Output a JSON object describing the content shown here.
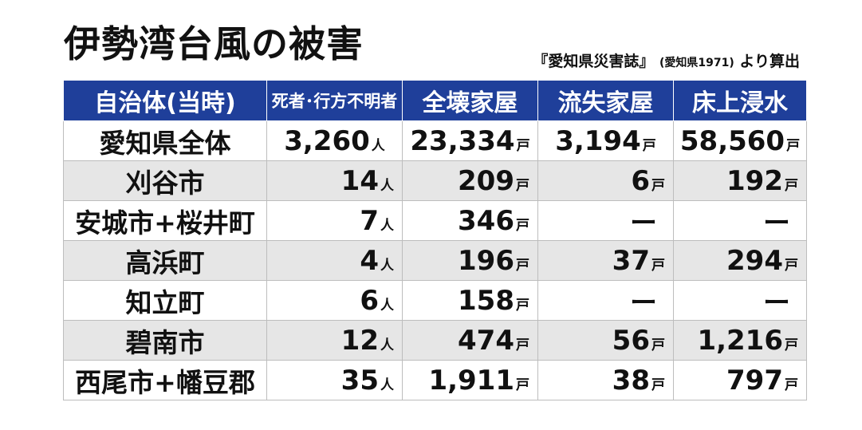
{
  "title": "伊勢湾台風の被害",
  "source": {
    "main": "『愛知県災害誌』",
    "detail": "(愛知県1971)",
    "suffix": "より算出"
  },
  "colors": {
    "header_bg": "#1f3f9a",
    "stripe": "#e6e6e6"
  },
  "headers": [
    "自治体(当時)",
    "死者･行方不明者",
    "全壊家屋",
    "流失家屋",
    "床上浸水"
  ],
  "rows": [
    {
      "name": "愛知県全体",
      "deaths": "3,260",
      "deaths_unit": "人",
      "destroyed": "23,334",
      "destroyed_unit": "戸",
      "washed": "3,194",
      "washed_unit": "戸",
      "flooded": "58,560",
      "flooded_unit": "戸"
    },
    {
      "name": "刈谷市",
      "deaths": "14",
      "deaths_unit": "人",
      "destroyed": "209",
      "destroyed_unit": "戸",
      "washed": "6",
      "washed_unit": "戸",
      "flooded": "192",
      "flooded_unit": "戸"
    },
    {
      "name": "安城市+桜井町",
      "deaths": "7",
      "deaths_unit": "人",
      "destroyed": "346",
      "destroyed_unit": "戸",
      "washed": "ー",
      "washed_unit": "",
      "flooded": "ー",
      "flooded_unit": ""
    },
    {
      "name": "高浜町",
      "deaths": "4",
      "deaths_unit": "人",
      "destroyed": "196",
      "destroyed_unit": "戸",
      "washed": "37",
      "washed_unit": "戸",
      "flooded": "294",
      "flooded_unit": "戸"
    },
    {
      "name": "知立町",
      "deaths": "6",
      "deaths_unit": "人",
      "destroyed": "158",
      "destroyed_unit": "戸",
      "washed": "ー",
      "washed_unit": "",
      "flooded": "ー",
      "flooded_unit": ""
    },
    {
      "name": "碧南市",
      "deaths": "12",
      "deaths_unit": "人",
      "destroyed": "474",
      "destroyed_unit": "戸",
      "washed": "56",
      "washed_unit": "戸",
      "flooded": "1,216",
      "flooded_unit": "戸"
    },
    {
      "name": "西尾市+幡豆郡",
      "deaths": "35",
      "deaths_unit": "人",
      "destroyed": "1,911",
      "destroyed_unit": "戸",
      "washed": "38",
      "washed_unit": "戸",
      "flooded": "797",
      "flooded_unit": "戸"
    }
  ]
}
